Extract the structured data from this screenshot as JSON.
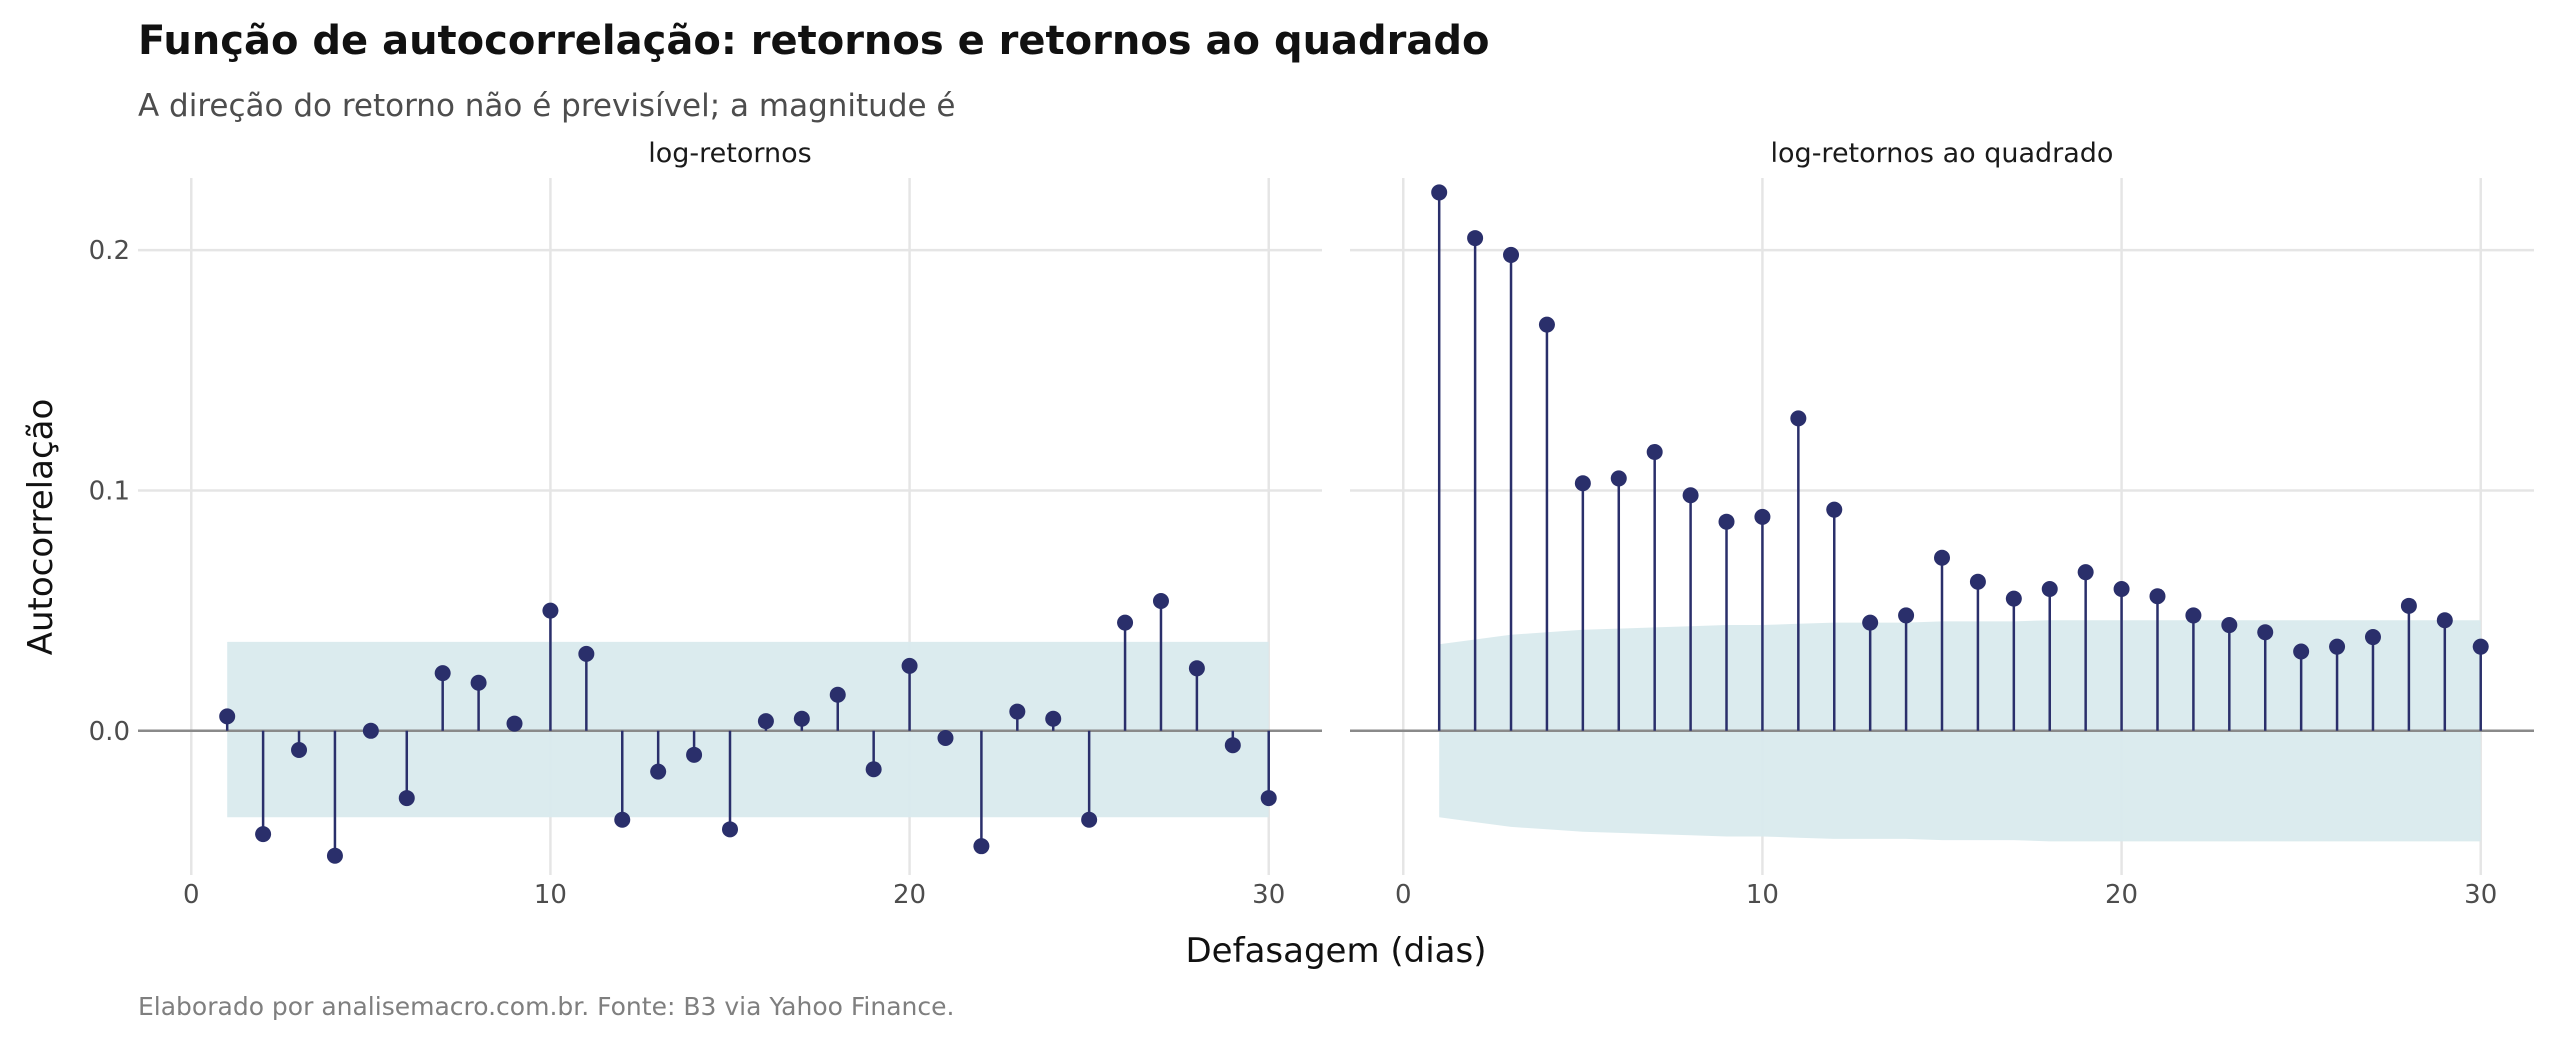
{
  "title": "Função de autocorrelação: retornos e retornos ao quadrado",
  "subtitle": "A direção do retorno não é previsível; a magnitude é",
  "caption": "Elaborado por analisemacro.com.br. Fonte: B3 via Yahoo Finance.",
  "colors": {
    "stem": "#2a2f6b",
    "band": "#d9eaed",
    "grid": "#e5e5e5",
    "zero_line": "#8a8a8a"
  },
  "chart_data": {
    "type": "lollipop",
    "xlabel": "Defasagem (dias)",
    "ylabel": "Autocorrelação",
    "xlim": [
      0,
      30
    ],
    "ylim": [
      -0.06,
      0.23
    ],
    "x_ticks": [
      0,
      10,
      20,
      30
    ],
    "y_ticks": [
      0.0,
      0.1,
      0.2
    ],
    "y_tick_labels": [
      "0.0",
      "0.1",
      "0.2"
    ],
    "grid": true,
    "panels": [
      {
        "name": "log-retornos",
        "lags": [
          1,
          2,
          3,
          4,
          5,
          6,
          7,
          8,
          9,
          10,
          11,
          12,
          13,
          14,
          15,
          16,
          17,
          18,
          19,
          20,
          21,
          22,
          23,
          24,
          25,
          26,
          27,
          28,
          29,
          30
        ],
        "acf": [
          0.006,
          -0.043,
          -0.008,
          -0.052,
          0.0,
          -0.028,
          0.024,
          0.02,
          0.003,
          0.05,
          0.032,
          -0.037,
          -0.017,
          -0.01,
          -0.041,
          0.004,
          0.005,
          0.015,
          -0.016,
          0.027,
          -0.003,
          -0.048,
          0.008,
          0.005,
          -0.037,
          0.045,
          0.054,
          0.026,
          -0.006,
          -0.028
        ],
        "band_upper": [
          0.037,
          0.037,
          0.037,
          0.037,
          0.037,
          0.037,
          0.037,
          0.037,
          0.037,
          0.037,
          0.037,
          0.037,
          0.037,
          0.037,
          0.037,
          0.037,
          0.037,
          0.037,
          0.037,
          0.037,
          0.037,
          0.037,
          0.037,
          0.037,
          0.037,
          0.037,
          0.037,
          0.037,
          0.037,
          0.037
        ],
        "band_lower": [
          -0.036,
          -0.036,
          -0.036,
          -0.036,
          -0.036,
          -0.036,
          -0.036,
          -0.036,
          -0.036,
          -0.036,
          -0.036,
          -0.036,
          -0.036,
          -0.036,
          -0.036,
          -0.036,
          -0.036,
          -0.036,
          -0.036,
          -0.036,
          -0.036,
          -0.036,
          -0.036,
          -0.036,
          -0.036,
          -0.036,
          -0.036,
          -0.036,
          -0.036,
          -0.036
        ]
      },
      {
        "name": "log-retornos ao quadrado",
        "lags": [
          1,
          2,
          3,
          4,
          5,
          6,
          7,
          8,
          9,
          10,
          11,
          12,
          13,
          14,
          15,
          16,
          17,
          18,
          19,
          20,
          21,
          22,
          23,
          24,
          25,
          26,
          27,
          28,
          29,
          30
        ],
        "acf": [
          0.224,
          0.205,
          0.198,
          0.169,
          0.103,
          0.105,
          0.116,
          0.098,
          0.087,
          0.089,
          0.13,
          0.092,
          0.045,
          0.048,
          0.072,
          0.062,
          0.055,
          0.059,
          0.066,
          0.059,
          0.056,
          0.048,
          0.044,
          0.041,
          0.033,
          0.035,
          0.039,
          0.052,
          0.046,
          0.035
        ],
        "band_upper": [
          0.036,
          0.038,
          0.04,
          0.041,
          0.042,
          0.0425,
          0.043,
          0.0435,
          0.044,
          0.044,
          0.0445,
          0.045,
          0.045,
          0.045,
          0.0455,
          0.0455,
          0.0455,
          0.046,
          0.046,
          0.046,
          0.046,
          0.046,
          0.046,
          0.046,
          0.046,
          0.046,
          0.046,
          0.046,
          0.046,
          0.046
        ],
        "band_lower": [
          -0.036,
          -0.038,
          -0.04,
          -0.041,
          -0.042,
          -0.0425,
          -0.043,
          -0.0435,
          -0.044,
          -0.044,
          -0.0445,
          -0.045,
          -0.045,
          -0.045,
          -0.0455,
          -0.0455,
          -0.0455,
          -0.046,
          -0.046,
          -0.046,
          -0.046,
          -0.046,
          -0.046,
          -0.046,
          -0.046,
          -0.046,
          -0.046,
          -0.046,
          -0.046,
          -0.046
        ]
      }
    ]
  }
}
